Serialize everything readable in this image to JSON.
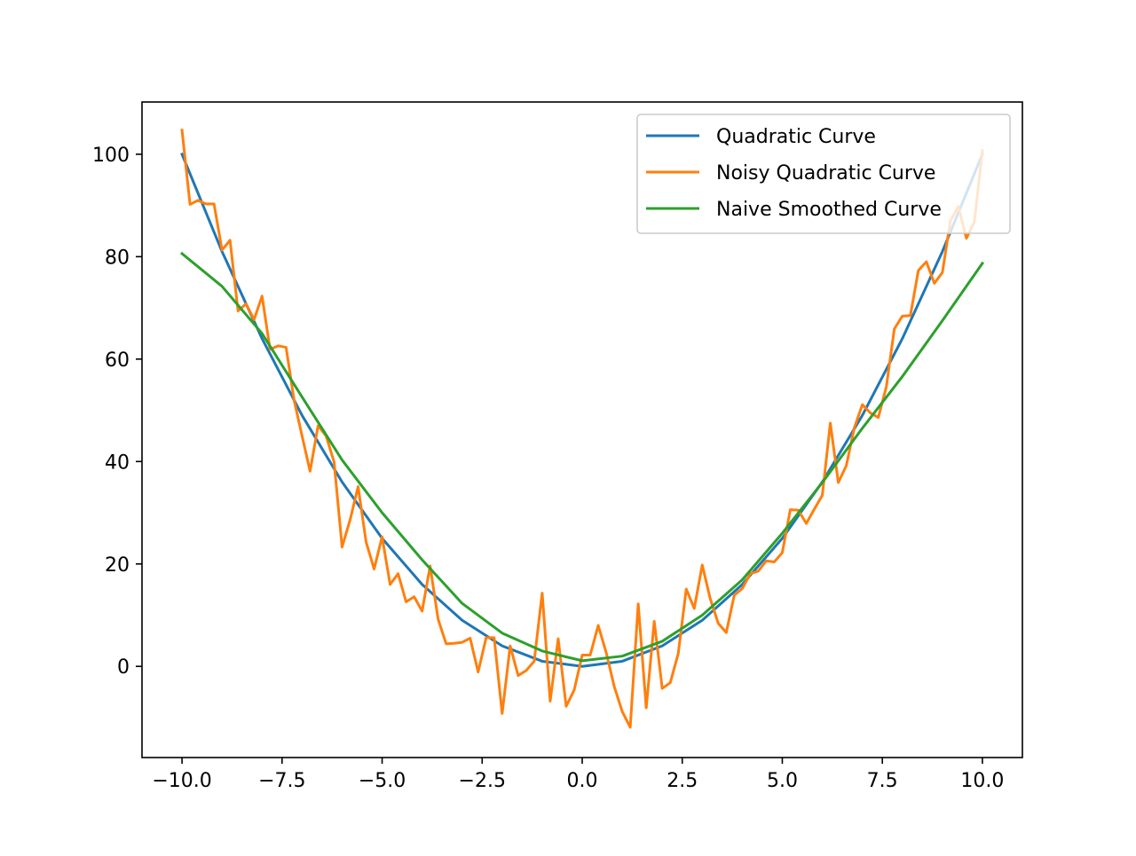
{
  "chart_data": {
    "type": "line",
    "title": "",
    "xlabel": "",
    "ylabel": "",
    "xlim": [
      -11.0,
      11.0
    ],
    "ylim": [
      -17.8,
      110.2
    ],
    "grid": false,
    "legend_position": "upper right",
    "xticks": [
      -10.0,
      -7.5,
      -5.0,
      -2.5,
      0.0,
      2.5,
      5.0,
      7.5,
      10.0
    ],
    "xtick_labels": [
      "−10.0",
      "−7.5",
      "−5.0",
      "−2.5",
      "0.0",
      "2.5",
      "5.0",
      "7.5",
      "10.0"
    ],
    "yticks": [
      0,
      20,
      40,
      60,
      80,
      100
    ],
    "ytick_labels": [
      "0",
      "20",
      "40",
      "60",
      "80",
      "100"
    ],
    "series": [
      {
        "name": "Quadratic Curve",
        "color": "#1f77b4",
        "x": [
          -10.0,
          -9.0,
          -8.0,
          -7.0,
          -6.0,
          -5.0,
          -4.0,
          -3.0,
          -2.0,
          -1.0,
          0.0,
          1.0,
          2.0,
          3.0,
          4.0,
          5.0,
          6.0,
          7.0,
          8.0,
          9.0,
          10.0
        ],
        "y": [
          100,
          81,
          64,
          49,
          36,
          25,
          16,
          9,
          4,
          1,
          0,
          1,
          4,
          9,
          16,
          25,
          36,
          49,
          64,
          81,
          100
        ]
      },
      {
        "name": "Noisy Quadratic Curve",
        "color": "#ff7f0e",
        "x": [
          -10.0,
          -9.8,
          -9.6,
          -9.4,
          -9.2,
          -9.0,
          -8.8,
          -8.6,
          -8.4,
          -8.2,
          -8.0,
          -7.8,
          -7.6,
          -7.4,
          -7.2,
          -7.0,
          -6.8,
          -6.6,
          -6.4,
          -6.2,
          -6.0,
          -5.8,
          -5.6,
          -5.4,
          -5.2,
          -5.0,
          -4.8,
          -4.6,
          -4.4,
          -4.2,
          -4.0,
          -3.8,
          -3.6,
          -3.4,
          -3.2,
          -3.0,
          -2.8,
          -2.6,
          -2.4,
          -2.2,
          -2.0,
          -1.8,
          -1.6,
          -1.4,
          -1.2,
          -1.0,
          -0.8,
          -0.6,
          -0.4,
          -0.2,
          0.0,
          0.2,
          0.4,
          0.6,
          0.8,
          1.0,
          1.2,
          1.4,
          1.6,
          1.8,
          2.0,
          2.2,
          2.4,
          2.6,
          2.8,
          3.0,
          3.2,
          3.4,
          3.6,
          3.8,
          4.0,
          4.2,
          4.4,
          4.6,
          4.8,
          5.0,
          5.2,
          5.4,
          5.6,
          5.8,
          6.0,
          6.2,
          6.4,
          6.6,
          6.8,
          7.0,
          7.2,
          7.4,
          7.6,
          7.8,
          8.0,
          8.2,
          8.4,
          8.6,
          8.8,
          9.0,
          9.2,
          9.4,
          9.6,
          9.8,
          10.0
        ],
        "y": [
          104.7,
          90.2,
          91.0,
          90.3,
          90.3,
          81.3,
          83.2,
          69.4,
          70.8,
          67.7,
          72.3,
          61.9,
          62.6,
          62.3,
          52.0,
          45.0,
          38.1,
          47.0,
          45.0,
          39.9,
          23.3,
          28.6,
          35.1,
          24.3,
          19.0,
          25.3,
          16.0,
          18.1,
          12.6,
          13.6,
          10.8,
          19.6,
          9.2,
          4.4,
          4.5,
          4.7,
          5.5,
          -1.1,
          5.6,
          5.6,
          -9.2,
          4.0,
          -1.8,
          -0.8,
          1.0,
          14.3,
          -6.8,
          5.4,
          -7.8,
          -4.6,
          2.2,
          2.2,
          8.0,
          2.7,
          -3.9,
          -8.8,
          -11.9,
          12.2,
          -8.1,
          8.8,
          -4.3,
          -3.2,
          2.5,
          15.1,
          11.3,
          19.8,
          13.2,
          8.4,
          6.6,
          13.9,
          15.2,
          18.1,
          18.6,
          20.6,
          20.4,
          22.2,
          30.6,
          30.5,
          27.9,
          30.7,
          33.4,
          47.5,
          35.9,
          39.2,
          46.6,
          51.1,
          49.5,
          48.6,
          54.6,
          65.9,
          68.4,
          68.5,
          77.3,
          79.0,
          74.8,
          76.9,
          87.0,
          89.8,
          83.6,
          86.8,
          100.7
        ]
      },
      {
        "name": "Naive Smoothed Curve",
        "color": "#2ca02c",
        "x": [
          -10.0,
          -9.0,
          -8.0,
          -7.0,
          -6.0,
          -5.0,
          -4.0,
          -3.0,
          -2.0,
          -1.0,
          0.0,
          1.0,
          2.0,
          3.0,
          4.0,
          5.0,
          6.0,
          7.0,
          8.0,
          9.0,
          10.0
        ],
        "y": [
          80.6,
          74.2,
          65.0,
          52.6,
          40.3,
          30.0,
          20.8,
          12.3,
          6.5,
          3.0,
          1.1,
          2.0,
          4.9,
          10.0,
          16.9,
          26.0,
          35.9,
          46.5,
          56.6,
          67.5,
          78.7
        ]
      }
    ]
  }
}
